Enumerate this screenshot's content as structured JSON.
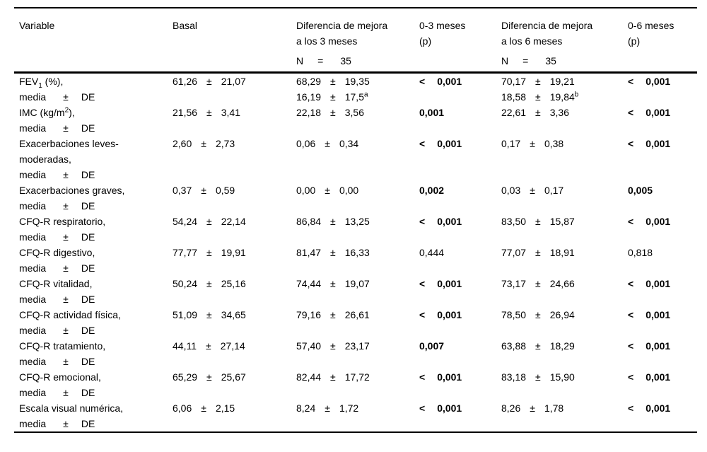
{
  "table": {
    "pm_symbol": "±",
    "header": {
      "variable": "Variable",
      "basal": "Basal",
      "diff3_line1": "Diferencia de mejora",
      "diff3_line2": "a los 3 meses",
      "p3_line1": "0-3 meses",
      "p3_line2": "(p)",
      "diff6_line1": "Diferencia de mejora",
      "diff6_line2": "a los 6 meses",
      "p6_line1": "0-6 meses",
      "p6_line2": "(p)",
      "n_label": "N",
      "n_eq": "=",
      "n_value": "35"
    },
    "row_sublabel": [
      "media",
      "±",
      "DE"
    ],
    "rows": [
      {
        "variable": [
          "FEV{sub:1} (%),"
        ],
        "basal": {
          "mean": "61,26",
          "sd": "21,07"
        },
        "diff3": [
          {
            "mean": "68,29",
            "sd": "19,35"
          },
          {
            "mean": "16,19",
            "sd": "17,5{sup:a}"
          }
        ],
        "p3": {
          "lt": "<",
          "value": "0,001",
          "bold": true
        },
        "diff6": [
          {
            "mean": "70,17",
            "sd": "19,21"
          },
          {
            "mean": "18,58",
            "sd": "19,84{sup:b}"
          }
        ],
        "p6": {
          "lt": "<",
          "value": "0,001",
          "bold": true
        }
      },
      {
        "variable": [
          "IMC (kg/m{sup:2}),"
        ],
        "basal": {
          "mean": "21,56",
          "sd": "3,41"
        },
        "diff3": [
          {
            "mean": "22,18",
            "sd": "3,56"
          }
        ],
        "p3": {
          "value": "0,001",
          "bold": true
        },
        "diff6": [
          {
            "mean": "22,61",
            "sd": "3,36"
          }
        ],
        "p6": {
          "lt": "<",
          "value": "0,001",
          "bold": true
        }
      },
      {
        "variable": [
          "Exacerbaciones leves-",
          "moderadas,"
        ],
        "basal": {
          "mean": "2,60",
          "sd": "2,73"
        },
        "diff3": [
          {
            "mean": "0,06",
            "sd": "0,34"
          }
        ],
        "p3": {
          "lt": "<",
          "value": "0,001",
          "bold": true
        },
        "diff6": [
          {
            "mean": "0,17",
            "sd": "0,38"
          }
        ],
        "p6": {
          "lt": "<",
          "value": "0,001",
          "bold": true
        }
      },
      {
        "variable": [
          "Exacerbaciones graves,"
        ],
        "basal": {
          "mean": "0,37",
          "sd": "0,59"
        },
        "diff3": [
          {
            "mean": "0,00",
            "sd": "0,00"
          }
        ],
        "p3": {
          "value": "0,002",
          "bold": true
        },
        "diff6": [
          {
            "mean": "0,03",
            "sd": "0,17"
          }
        ],
        "p6": {
          "value": "0,005",
          "bold": true
        }
      },
      {
        "variable": [
          "CFQ-R respiratorio,"
        ],
        "basal": {
          "mean": "54,24",
          "sd": "22,14"
        },
        "diff3": [
          {
            "mean": "86,84",
            "sd": "13,25"
          }
        ],
        "p3": {
          "lt": "<",
          "value": "0,001",
          "bold": true
        },
        "diff6": [
          {
            "mean": "83,50",
            "sd": "15,87"
          }
        ],
        "p6": {
          "lt": "<",
          "value": "0,001",
          "bold": true
        }
      },
      {
        "variable": [
          "CFQ-R digestivo,"
        ],
        "basal": {
          "mean": "77,77",
          "sd": "19,91"
        },
        "diff3": [
          {
            "mean": "81,47",
            "sd": "16,33"
          }
        ],
        "p3": {
          "value": "0,444",
          "bold": false
        },
        "diff6": [
          {
            "mean": "77,07",
            "sd": "18,91"
          }
        ],
        "p6": {
          "value": "0,818",
          "bold": false
        }
      },
      {
        "variable": [
          "CFQ-R vitalidad,"
        ],
        "basal": {
          "mean": "50,24",
          "sd": "25,16"
        },
        "diff3": [
          {
            "mean": "74,44",
            "sd": "19,07"
          }
        ],
        "p3": {
          "lt": "<",
          "value": "0,001",
          "bold": true
        },
        "diff6": [
          {
            "mean": "73,17",
            "sd": "24,66"
          }
        ],
        "p6": {
          "lt": "<",
          "value": "0,001",
          "bold": true
        }
      },
      {
        "variable": [
          "CFQ-R actividad física,"
        ],
        "basal": {
          "mean": "51,09",
          "sd": "34,65"
        },
        "diff3": [
          {
            "mean": "79,16",
            "sd": "26,61"
          }
        ],
        "p3": {
          "lt": "<",
          "value": "0,001",
          "bold": true
        },
        "diff6": [
          {
            "mean": "78,50",
            "sd": "26,94"
          }
        ],
        "p6": {
          "lt": "<",
          "value": "0,001",
          "bold": true
        }
      },
      {
        "variable": [
          "CFQ-R tratamiento,"
        ],
        "basal": {
          "mean": "44,11",
          "sd": "27,14"
        },
        "diff3": [
          {
            "mean": "57,40",
            "sd": "23,17"
          }
        ],
        "p3": {
          "value": "0,007",
          "bold": true
        },
        "diff6": [
          {
            "mean": "63,88",
            "sd": "18,29"
          }
        ],
        "p6": {
          "lt": "<",
          "value": "0,001",
          "bold": true
        }
      },
      {
        "variable": [
          "CFQ-R emocional,"
        ],
        "basal": {
          "mean": "65,29",
          "sd": "25,67"
        },
        "diff3": [
          {
            "mean": "82,44",
            "sd": "17,72"
          }
        ],
        "p3": {
          "lt": "<",
          "value": "0,001",
          "bold": true
        },
        "diff6": [
          {
            "mean": "83,18",
            "sd": "15,90"
          }
        ],
        "p6": {
          "lt": "<",
          "value": "0,001",
          "bold": true
        }
      },
      {
        "variable": [
          "Escala visual numérica,"
        ],
        "basal": {
          "mean": "6,06",
          "sd": "2,15"
        },
        "diff3": [
          {
            "mean": "8,24",
            "sd": "1,72"
          }
        ],
        "p3": {
          "lt": "<",
          "value": "0,001",
          "bold": true
        },
        "diff6": [
          {
            "mean": "8,26",
            "sd": "1,78"
          }
        ],
        "p6": {
          "lt": "<",
          "value": "0,001",
          "bold": true
        }
      }
    ]
  }
}
